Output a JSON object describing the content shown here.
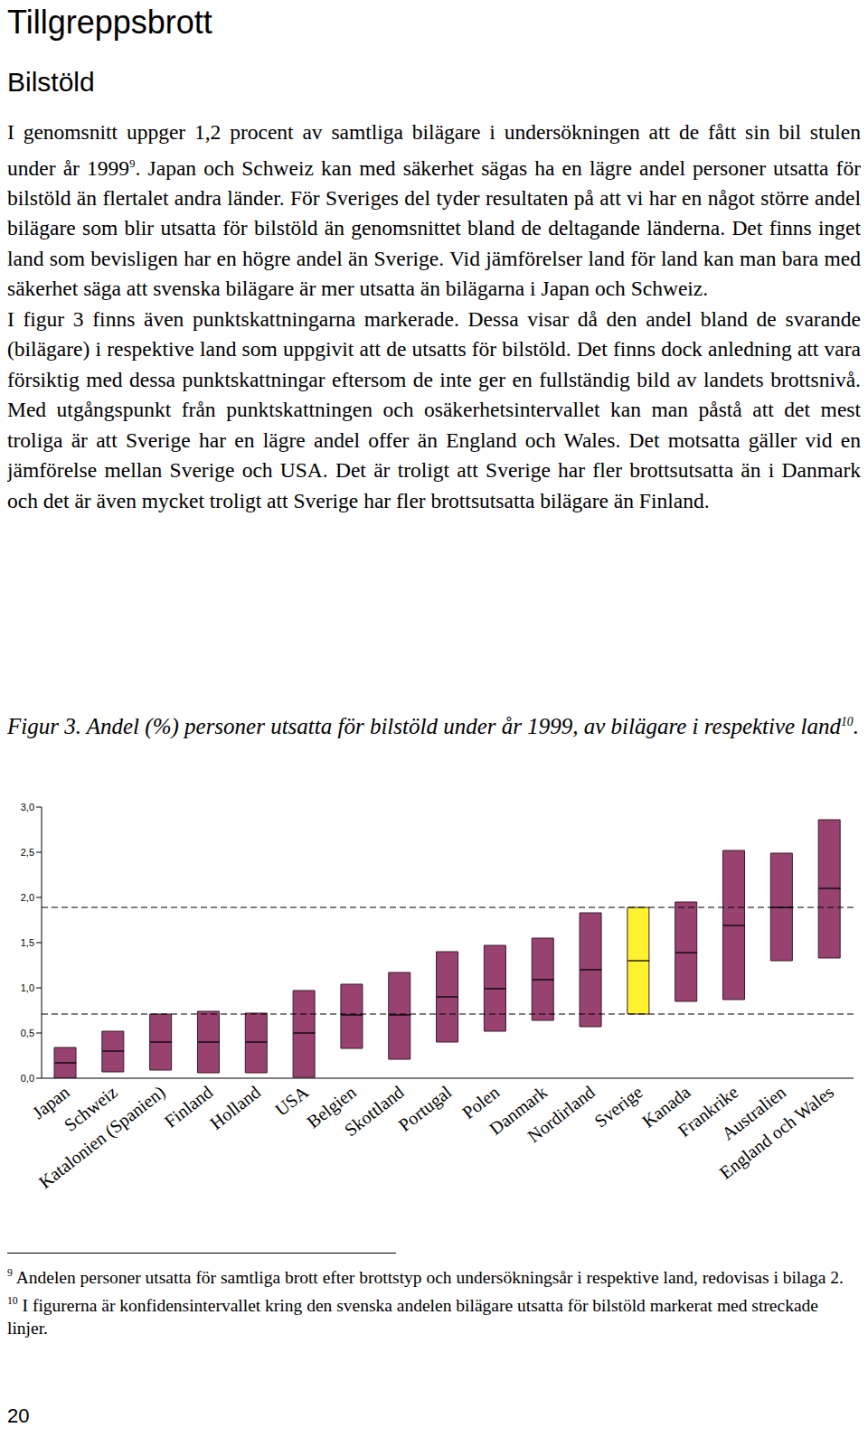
{
  "header": {
    "title": "Tillgreppsbrott",
    "subtitle": "Bilstöld"
  },
  "paragraphs": [
    [
      {
        "text": "I genomsnitt uppger 1,2 procent av samtliga bilägare i undersökningen att de fått sin bil stulen under år 1999"
      },
      {
        "sup": "9"
      },
      {
        "text": ". Japan och Schweiz kan med säkerhet sägas ha en lägre andel personer utsatta för bilstöld än flertalet andra länder. För Sveriges del tyder resultaten på att vi har en något större andel bilägare som blir utsatta för bilstöld än genomsnittet bland de deltagande länderna. Det finns inget land som bevisligen har en högre andel än Sverige. Vid jämförelser land för land kan man bara med säkerhet säga att svenska bilägare är mer utsatta än bilägarna i Japan och Schweiz."
      }
    ],
    [
      {
        "text": "I figur 3 finns även punktskattningarna markerade. Dessa visar då den andel bland de svarande (bilägare) i respektive land som uppgivit att de utsatts för bilstöld. Det finns dock anledning att vara försiktig med dessa punktskattningar eftersom de inte ger en fullständig bild av landets brottsnivå. Med utgångspunkt från punktskattningen och osäkerhetsintervallet kan man påstå att det mest troliga är att Sverige har en lägre andel offer än England och Wales. Det motsatta gäller vid en jämförelse mellan Sverige och USA. Det är troligt att Sverige har fler brottsutsatta än i Danmark och det är även mycket troligt att Sverige har fler brottsutsatta bilägare än Finland."
      }
    ]
  ],
  "caption": [
    {
      "text": "Figur 3. Andel (%) personer utsatta för bilstöld under år 1999, av bilägare i respektive land"
    },
    {
      "sup": "10"
    },
    {
      "text": "."
    }
  ],
  "chart_data": {
    "type": "floating_bar",
    "categories": [
      "Japan",
      "Schweiz",
      "Katalonien (Spanien)",
      "Finland",
      "Holland",
      "USA",
      "Belgien",
      "Skottland",
      "Portugal",
      "Polen",
      "Danmark",
      "Nordirland",
      "Sverige",
      "Kanada",
      "Frankrike",
      "Australien",
      "England och Wales"
    ],
    "low": [
      0.0,
      0.07,
      0.09,
      0.06,
      0.06,
      0.01,
      0.33,
      0.21,
      0.4,
      0.52,
      0.64,
      0.57,
      0.71,
      0.85,
      0.87,
      1.3,
      1.33
    ],
    "high": [
      0.34,
      0.52,
      0.71,
      0.74,
      0.72,
      0.97,
      1.04,
      1.17,
      1.4,
      1.47,
      1.55,
      1.83,
      1.89,
      1.95,
      2.52,
      2.49,
      2.86
    ],
    "estimate": [
      0.17,
      0.3,
      0.4,
      0.4,
      0.4,
      0.5,
      0.7,
      0.7,
      0.9,
      0.99,
      1.09,
      1.2,
      1.3,
      1.39,
      1.69,
      1.89,
      2.1
    ],
    "colors": [
      "#98426f",
      "#98426f",
      "#98426f",
      "#98426f",
      "#98426f",
      "#98426f",
      "#98426f",
      "#98426f",
      "#98426f",
      "#98426f",
      "#98426f",
      "#98426f",
      "#fff22e",
      "#98426f",
      "#98426f",
      "#98426f",
      "#98426f"
    ],
    "reference_lines": [
      0.71,
      1.89
    ],
    "ylim": [
      0,
      3
    ],
    "yticks": [
      {
        "value": 0,
        "label": "0,0"
      },
      {
        "value": 0.5,
        "label": "0,5"
      },
      {
        "value": 1,
        "label": "1,0"
      },
      {
        "value": 1.5,
        "label": "1,5"
      },
      {
        "value": 2,
        "label": "2,0"
      },
      {
        "value": 2.5,
        "label": "2,5"
      },
      {
        "value": 3,
        "label": "3,0"
      }
    ],
    "grid": false
  },
  "footnotes": [
    {
      "mark": "9",
      "text": "Andelen personer utsatta för samtliga brott efter brottstyp och undersökningsår i respektive land, redovisas i bilaga 2."
    },
    {
      "mark": "10",
      "text": "I figurerna är konfidensintervallet kring den svenska andelen bilägare utsatta för bilstöld markerat med streckade linjer."
    }
  ],
  "page_number": 20
}
